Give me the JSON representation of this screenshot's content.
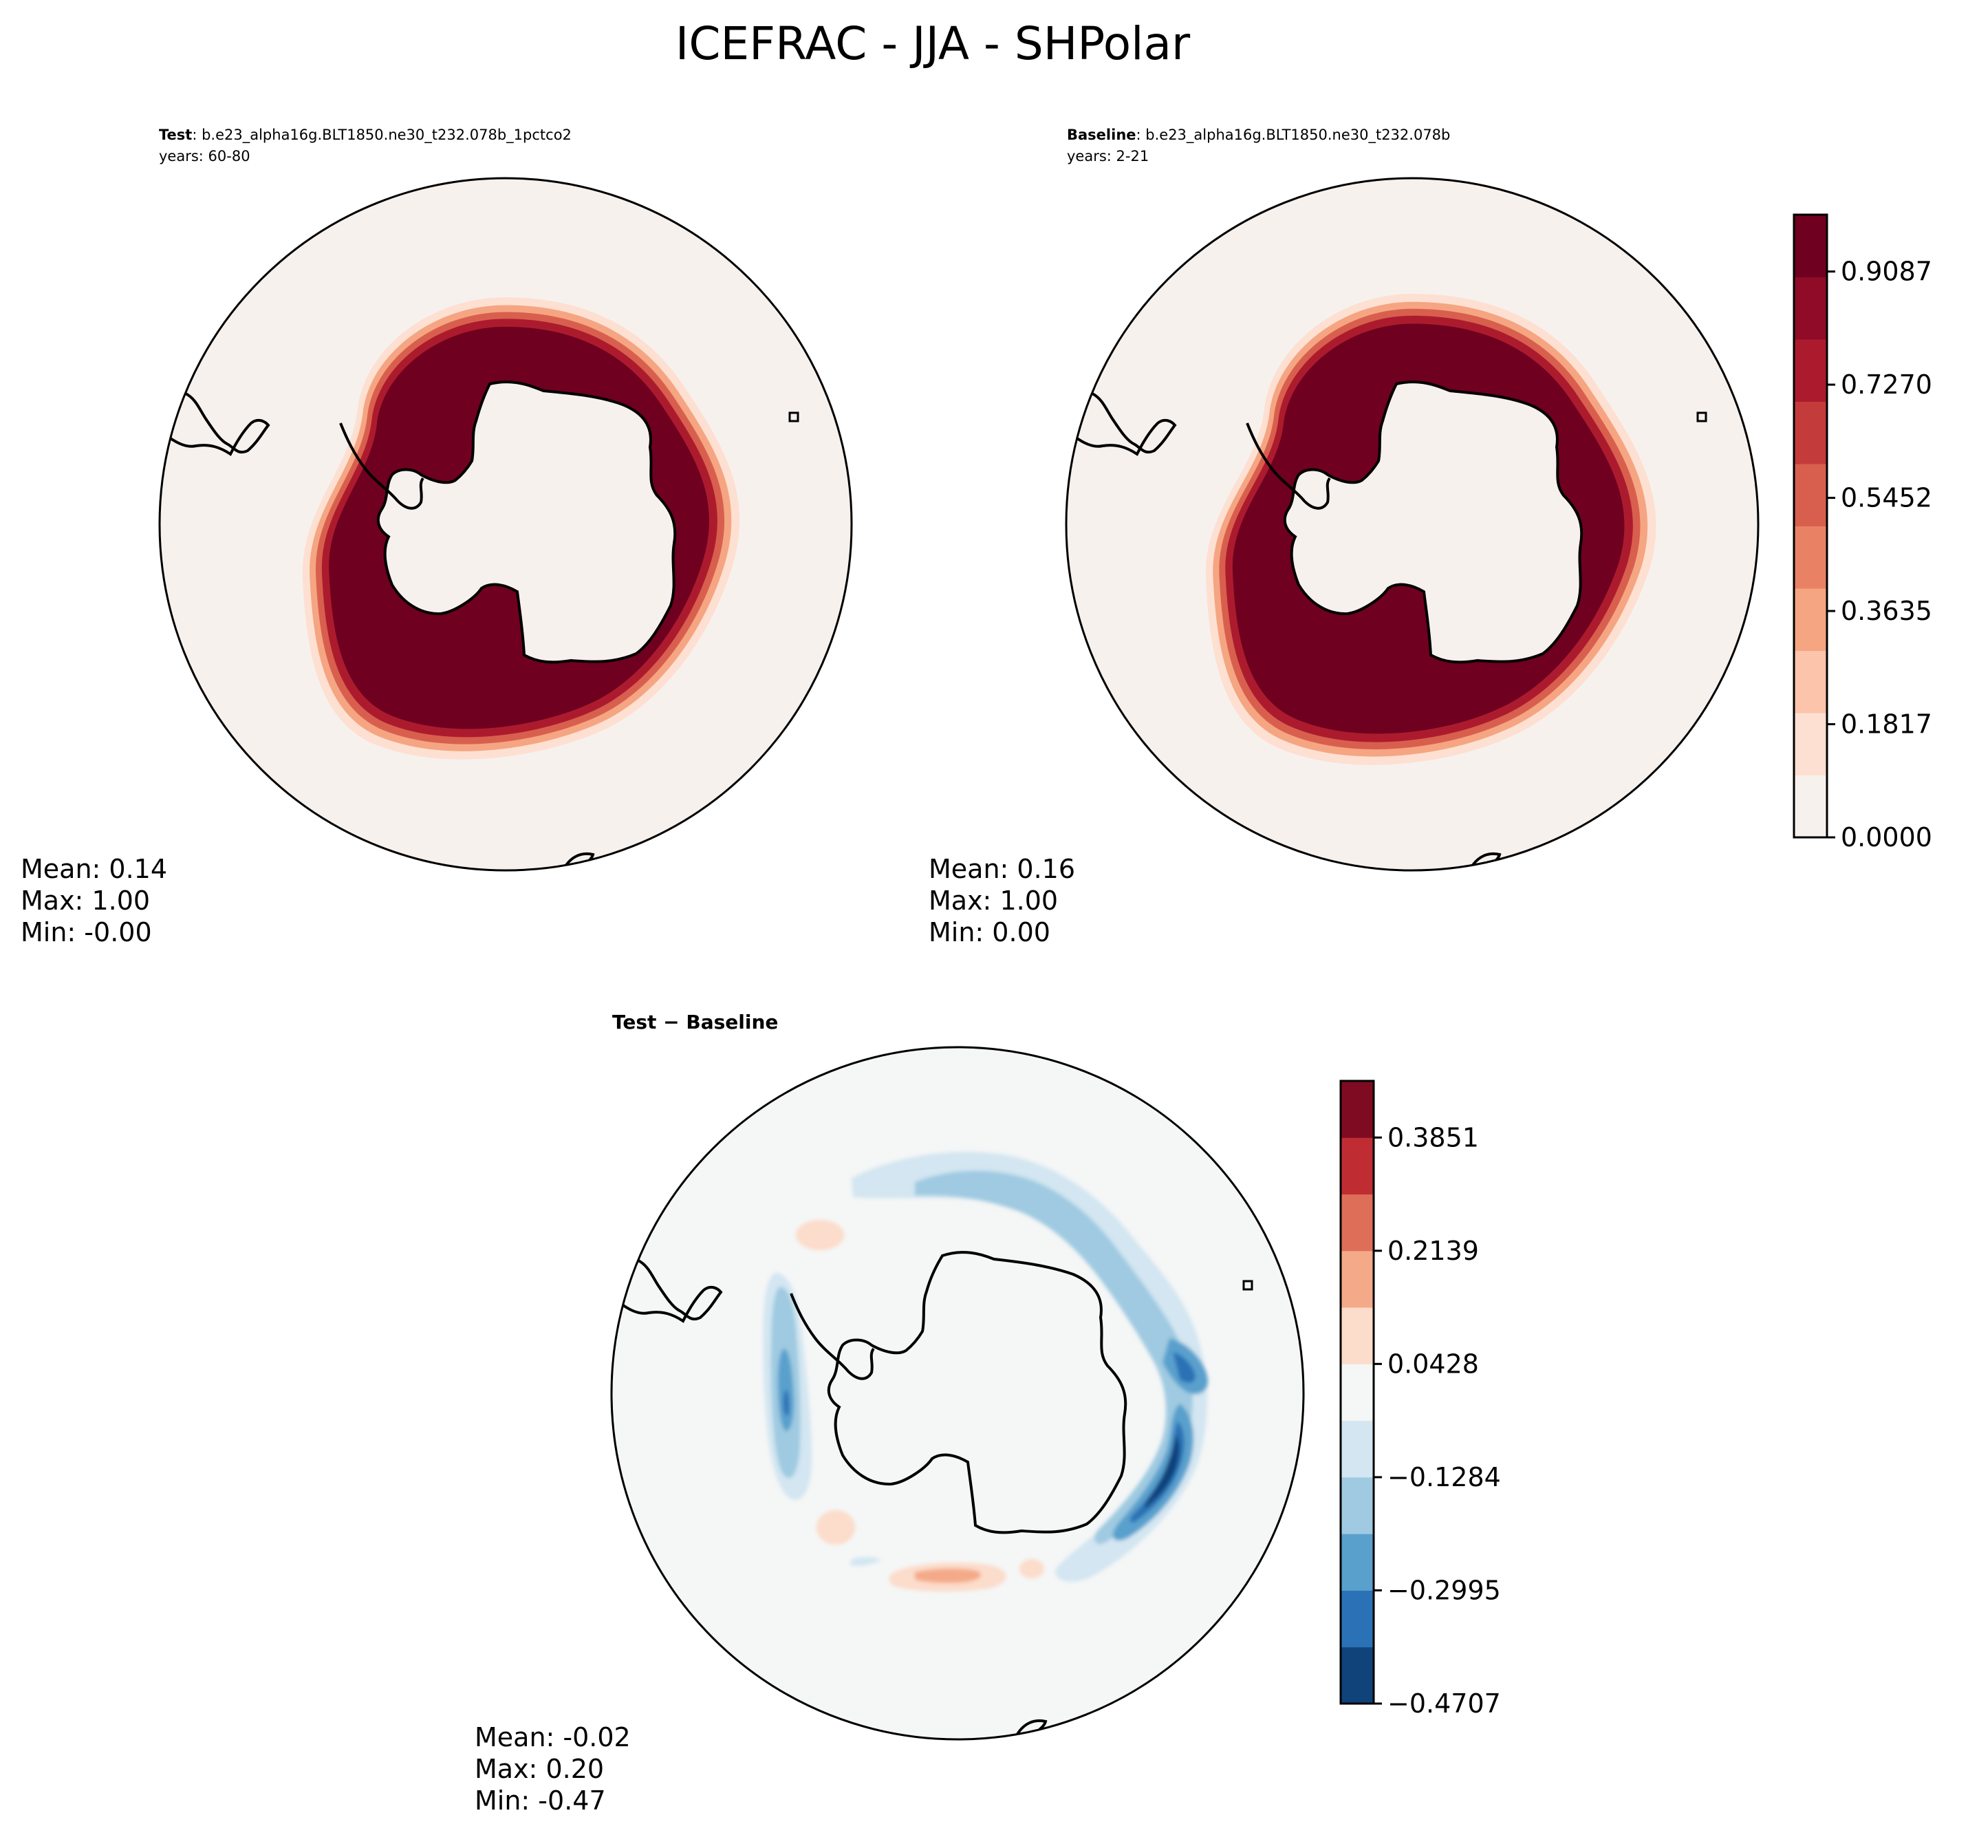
{
  "figure": {
    "title": "ICEFRAC - JJA - SHPolar"
  },
  "panels": [
    {
      "id": "test",
      "title_bold": "Test",
      "title_rest": ": b.e23_alpha16g.BLT1850.ne30_t232.078b_1pctco2",
      "subtitle": "years: 60-80",
      "stats": {
        "mean": "Mean:  0.14",
        "max": "Max:  1.00",
        "min": "Min: -0.00"
      }
    },
    {
      "id": "baseline",
      "title_bold": "Baseline",
      "title_rest": ": b.e23_alpha16g.BLT1850.ne30_t232.078b",
      "subtitle": "years: 2-21",
      "stats": {
        "mean": "Mean:  0.16",
        "max": "Max:  1.00",
        "min": "Min:  0.00"
      }
    },
    {
      "id": "diff",
      "title_bold": "Test − Baseline",
      "stats": {
        "mean": "Mean: -0.02",
        "max": "Max:  0.20",
        "min": "Min: -0.47"
      }
    }
  ],
  "chart_data": [
    {
      "type": "heatmap",
      "projection": "south-polar-stereographic",
      "variable": "ICEFRAC",
      "colormap": "RdBu_r",
      "shared_colorbar": {
        "range": [
          0.0,
          1.0
        ],
        "levels": 11,
        "ticks": [
          "0.0000",
          "0.1817",
          "0.3635",
          "0.5452",
          "0.7270",
          "0.9087"
        ],
        "colors": [
          "#f7f1ee",
          "#fde0d2",
          "#fbc4ab",
          "#f5a582",
          "#e98264",
          "#d85f4e",
          "#c43b3b",
          "#ac1b2d",
          "#8f0b27",
          "#6f0020"
        ]
      }
    },
    {
      "type": "heatmap",
      "projection": "south-polar-stereographic",
      "variable": "ICEFRAC difference",
      "colormap": "RdBu_r",
      "colorbar": {
        "range": [
          -0.4707,
          0.4707
        ],
        "ticks": [
          "−0.4707",
          "−0.2995",
          "−0.1284",
          "0.0428",
          "0.2139",
          "0.3851"
        ],
        "colors": [
          "#0f437a",
          "#2a72b5",
          "#5aa0cd",
          "#9fcae1",
          "#d3e6f1",
          "#f5f6f6",
          "#fcdcca",
          "#f4aa88",
          "#de6e58",
          "#bf2d33",
          "#7e0b22"
        ]
      }
    }
  ]
}
